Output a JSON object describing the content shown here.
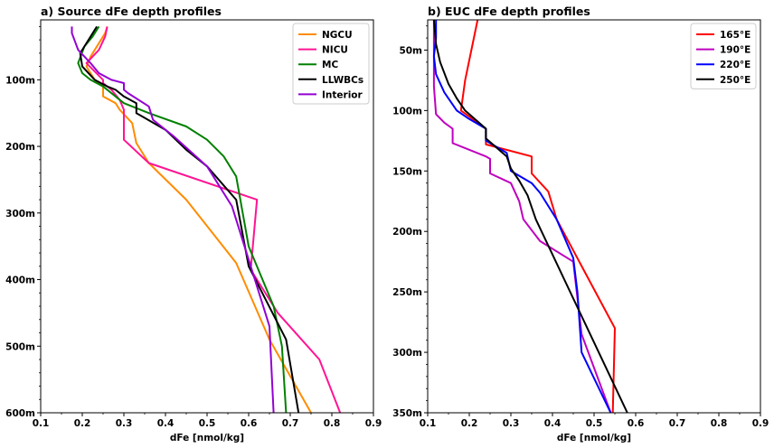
{
  "chart_data": [
    {
      "type": "line",
      "title": "a) Source dFe depth profiles",
      "xlabel": "dFe [nmol/kg]",
      "ylabel": "",
      "xlim": [
        0.1,
        0.9
      ],
      "ylim": [
        600,
        10
      ],
      "x_ticks": [
        0.1,
        0.2,
        0.3,
        0.4,
        0.5,
        0.6,
        0.7,
        0.8,
        0.9
      ],
      "x_tick_labels": [
        "0.1",
        "0.2",
        "0.3",
        "0.4",
        "0.5",
        "0.6",
        "0.7",
        "0.8",
        "0.9"
      ],
      "y_ticks": [
        100,
        200,
        300,
        400,
        500,
        600
      ],
      "y_tick_labels": [
        "100m",
        "200m",
        "300m",
        "400m",
        "500m",
        "600m"
      ],
      "legend_position": "top-right",
      "series": [
        {
          "name": "NGCU",
          "color": "#ff8c00",
          "points": [
            [
              0.26,
              20
            ],
            [
              0.255,
              30
            ],
            [
              0.24,
              45
            ],
            [
              0.22,
              65
            ],
            [
              0.21,
              80
            ],
            [
              0.23,
              100
            ],
            [
              0.25,
              110
            ],
            [
              0.25,
              125
            ],
            [
              0.28,
              135
            ],
            [
              0.29,
              145
            ],
            [
              0.32,
              165
            ],
            [
              0.33,
              195
            ],
            [
              0.36,
              225
            ],
            [
              0.45,
              280
            ],
            [
              0.57,
              375
            ],
            [
              0.65,
              490
            ],
            [
              0.75,
              600
            ]
          ]
        },
        {
          "name": "NICU",
          "color": "#ff1493",
          "points": [
            [
              0.26,
              20
            ],
            [
              0.255,
              35
            ],
            [
              0.24,
              55
            ],
            [
              0.21,
              75
            ],
            [
              0.25,
              100
            ],
            [
              0.25,
              105
            ],
            [
              0.27,
              115
            ],
            [
              0.29,
              130
            ],
            [
              0.3,
              145
            ],
            [
              0.3,
              190
            ],
            [
              0.36,
              225
            ],
            [
              0.62,
              280
            ],
            [
              0.605,
              385
            ],
            [
              0.67,
              450
            ],
            [
              0.77,
              520
            ],
            [
              0.82,
              600
            ]
          ]
        },
        {
          "name": "MC",
          "color": "#008000",
          "points": [
            [
              0.24,
              20
            ],
            [
              0.225,
              35
            ],
            [
              0.205,
              50
            ],
            [
              0.19,
              75
            ],
            [
              0.2,
              90
            ],
            [
              0.22,
              100
            ],
            [
              0.25,
              110
            ],
            [
              0.27,
              120
            ],
            [
              0.3,
              135
            ],
            [
              0.36,
              150
            ],
            [
              0.45,
              170
            ],
            [
              0.5,
              190
            ],
            [
              0.54,
              215
            ],
            [
              0.57,
              245
            ],
            [
              0.58,
              280
            ],
            [
              0.6,
              350
            ],
            [
              0.66,
              440
            ],
            [
              0.68,
              500
            ],
            [
              0.69,
              600
            ]
          ]
        },
        {
          "name": "LLWBCs",
          "color": "#000000",
          "points": [
            [
              0.235,
              20
            ],
            [
              0.215,
              40
            ],
            [
              0.195,
              60
            ],
            [
              0.2,
              80
            ],
            [
              0.23,
              100
            ],
            [
              0.26,
              110
            ],
            [
              0.28,
              115
            ],
            [
              0.3,
              125
            ],
            [
              0.33,
              135
            ],
            [
              0.33,
              150
            ],
            [
              0.4,
              175
            ],
            [
              0.45,
              205
            ],
            [
              0.5,
              230
            ],
            [
              0.57,
              280
            ],
            [
              0.6,
              380
            ],
            [
              0.69,
              490
            ],
            [
              0.72,
              600
            ]
          ]
        },
        {
          "name": "Interior",
          "color": "#9400d3",
          "points": [
            [
              0.175,
              20
            ],
            [
              0.175,
              30
            ],
            [
              0.19,
              55
            ],
            [
              0.22,
              75
            ],
            [
              0.24,
              90
            ],
            [
              0.27,
              100
            ],
            [
              0.3,
              105
            ],
            [
              0.3,
              115
            ],
            [
              0.31,
              120
            ],
            [
              0.36,
              140
            ],
            [
              0.37,
              160
            ],
            [
              0.42,
              185
            ],
            [
              0.5,
              230
            ],
            [
              0.56,
              290
            ],
            [
              0.59,
              350
            ],
            [
              0.61,
              390
            ],
            [
              0.65,
              470
            ],
            [
              0.66,
              600
            ]
          ]
        }
      ]
    },
    {
      "type": "line",
      "title": "b) EUC dFe depth profiles",
      "xlabel": "dFe [nmol/kg]",
      "ylabel": "",
      "xlim": [
        0.1,
        0.9
      ],
      "ylim": [
        350,
        25
      ],
      "x_ticks": [
        0.1,
        0.2,
        0.3,
        0.4,
        0.5,
        0.6,
        0.7,
        0.8,
        0.9
      ],
      "x_tick_labels": [
        "0.1",
        "0.2",
        "0.3",
        "0.4",
        "0.5",
        "0.6",
        "0.7",
        "0.8",
        "0.9"
      ],
      "y_ticks": [
        50,
        100,
        150,
        200,
        250,
        300,
        350
      ],
      "y_tick_labels": [
        "50m",
        "100m",
        "150m",
        "200m",
        "250m",
        "300m",
        "350m"
      ],
      "legend_position": "top-right",
      "series": [
        {
          "name": "165°E",
          "color": "#ff0000",
          "points": [
            [
              0.22,
              25
            ],
            [
              0.205,
              50
            ],
            [
              0.19,
              75
            ],
            [
              0.18,
              100
            ],
            [
              0.2,
              105
            ],
            [
              0.24,
              115
            ],
            [
              0.24,
              128
            ],
            [
              0.35,
              138
            ],
            [
              0.35,
              152
            ],
            [
              0.39,
              167
            ],
            [
              0.41,
              190
            ],
            [
              0.48,
              235
            ],
            [
              0.55,
              280
            ],
            [
              0.545,
              350
            ]
          ]
        },
        {
          "name": "190°E",
          "color": "#bf00bf",
          "points": [
            [
              0.115,
              25
            ],
            [
              0.115,
              50
            ],
            [
              0.115,
              80
            ],
            [
              0.12,
              103
            ],
            [
              0.14,
              110
            ],
            [
              0.16,
              115
            ],
            [
              0.16,
              127
            ],
            [
              0.24,
              138
            ],
            [
              0.25,
              140
            ],
            [
              0.25,
              152
            ],
            [
              0.3,
              160
            ],
            [
              0.32,
              175
            ],
            [
              0.33,
              190
            ],
            [
              0.37,
              208
            ],
            [
              0.45,
              225
            ],
            [
              0.47,
              285
            ],
            [
              0.54,
              350
            ]
          ]
        },
        {
          "name": "220°E",
          "color": "#0000ff",
          "points": [
            [
              0.12,
              25
            ],
            [
              0.12,
              40
            ],
            [
              0.115,
              55
            ],
            [
              0.12,
              70
            ],
            [
              0.14,
              85
            ],
            [
              0.17,
              100
            ],
            [
              0.2,
              107
            ],
            [
              0.24,
              115
            ],
            [
              0.24,
              125
            ],
            [
              0.29,
              135
            ],
            [
              0.3,
              150
            ],
            [
              0.35,
              160
            ],
            [
              0.37,
              168
            ],
            [
              0.41,
              190
            ],
            [
              0.45,
              222
            ],
            [
              0.46,
              250
            ],
            [
              0.47,
              300
            ],
            [
              0.54,
              350
            ]
          ]
        },
        {
          "name": "250°E",
          "color": "#000000",
          "points": [
            [
              0.115,
              25
            ],
            [
              0.12,
              45
            ],
            [
              0.13,
              60
            ],
            [
              0.15,
              78
            ],
            [
              0.17,
              90
            ],
            [
              0.19,
              100
            ],
            [
              0.24,
              115
            ],
            [
              0.24,
              123
            ],
            [
              0.29,
              138
            ],
            [
              0.3,
              148
            ],
            [
              0.32,
              158
            ],
            [
              0.34,
              170
            ],
            [
              0.36,
              190
            ],
            [
              0.58,
              350
            ]
          ]
        }
      ]
    }
  ]
}
